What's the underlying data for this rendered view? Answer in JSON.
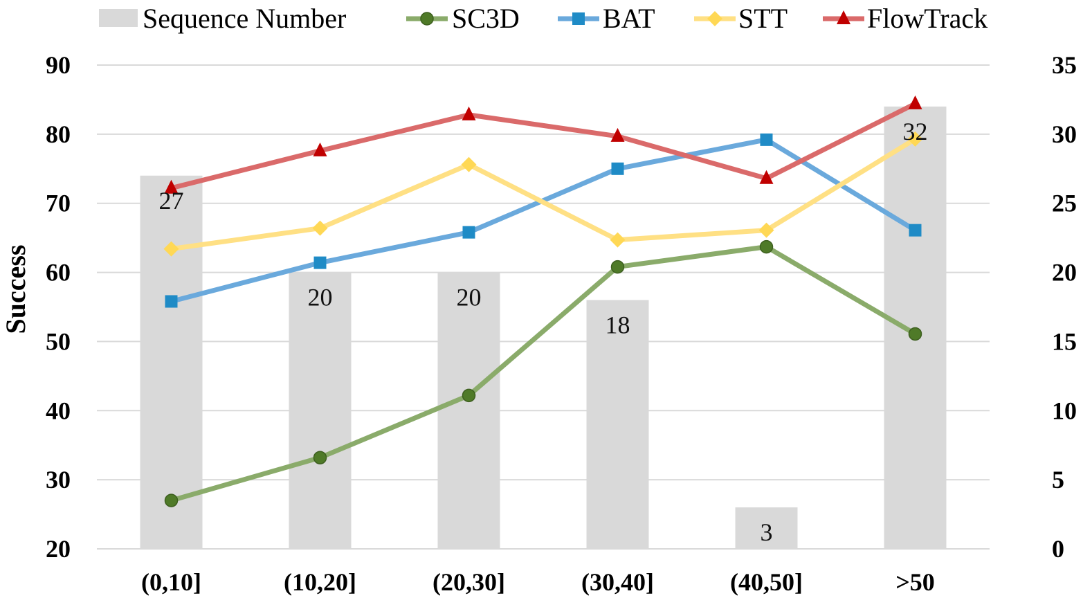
{
  "chart_data": {
    "type": "bar+line",
    "categories": [
      "(0,10]",
      "(10,20]",
      "(20,30]",
      "(30,40]",
      "(40,50]",
      ">50"
    ],
    "bar_series": {
      "name": "Sequence Number",
      "values": [
        27,
        20,
        20,
        18,
        3,
        32
      ],
      "axis": "right",
      "color": "#d9d9d9"
    },
    "series": [
      {
        "name": "SC3D",
        "values": [
          27.0,
          33.2,
          42.2,
          60.8,
          63.7,
          51.1
        ],
        "color": "#8aab6a",
        "marker": "circle",
        "marker_color": "#4f7a28"
      },
      {
        "name": "BAT",
        "values": [
          55.8,
          61.4,
          65.8,
          75.0,
          79.2,
          66.1
        ],
        "color": "#6aa9dc",
        "marker": "square",
        "marker_color": "#1f8bc6"
      },
      {
        "name": "STT",
        "values": [
          63.4,
          66.4,
          75.6,
          64.7,
          66.1,
          79.3
        ],
        "color": "#ffe084",
        "marker": "diamond",
        "marker_color": "#ffd855"
      },
      {
        "name": "FlowTrack",
        "values": [
          72.2,
          77.6,
          82.8,
          79.7,
          73.6,
          84.4
        ],
        "color": "#da6a6a",
        "marker": "triangle",
        "marker_color": "#c00000"
      }
    ],
    "ylabel": "Success",
    "ylim": [
      20,
      90
    ],
    "yticks": [
      20,
      30,
      40,
      50,
      60,
      70,
      80,
      90
    ],
    "y2lim": [
      0,
      35
    ],
    "y2ticks": [
      0,
      5,
      10,
      15,
      20,
      25,
      30,
      35
    ],
    "legend_position": "top",
    "grid": true
  }
}
